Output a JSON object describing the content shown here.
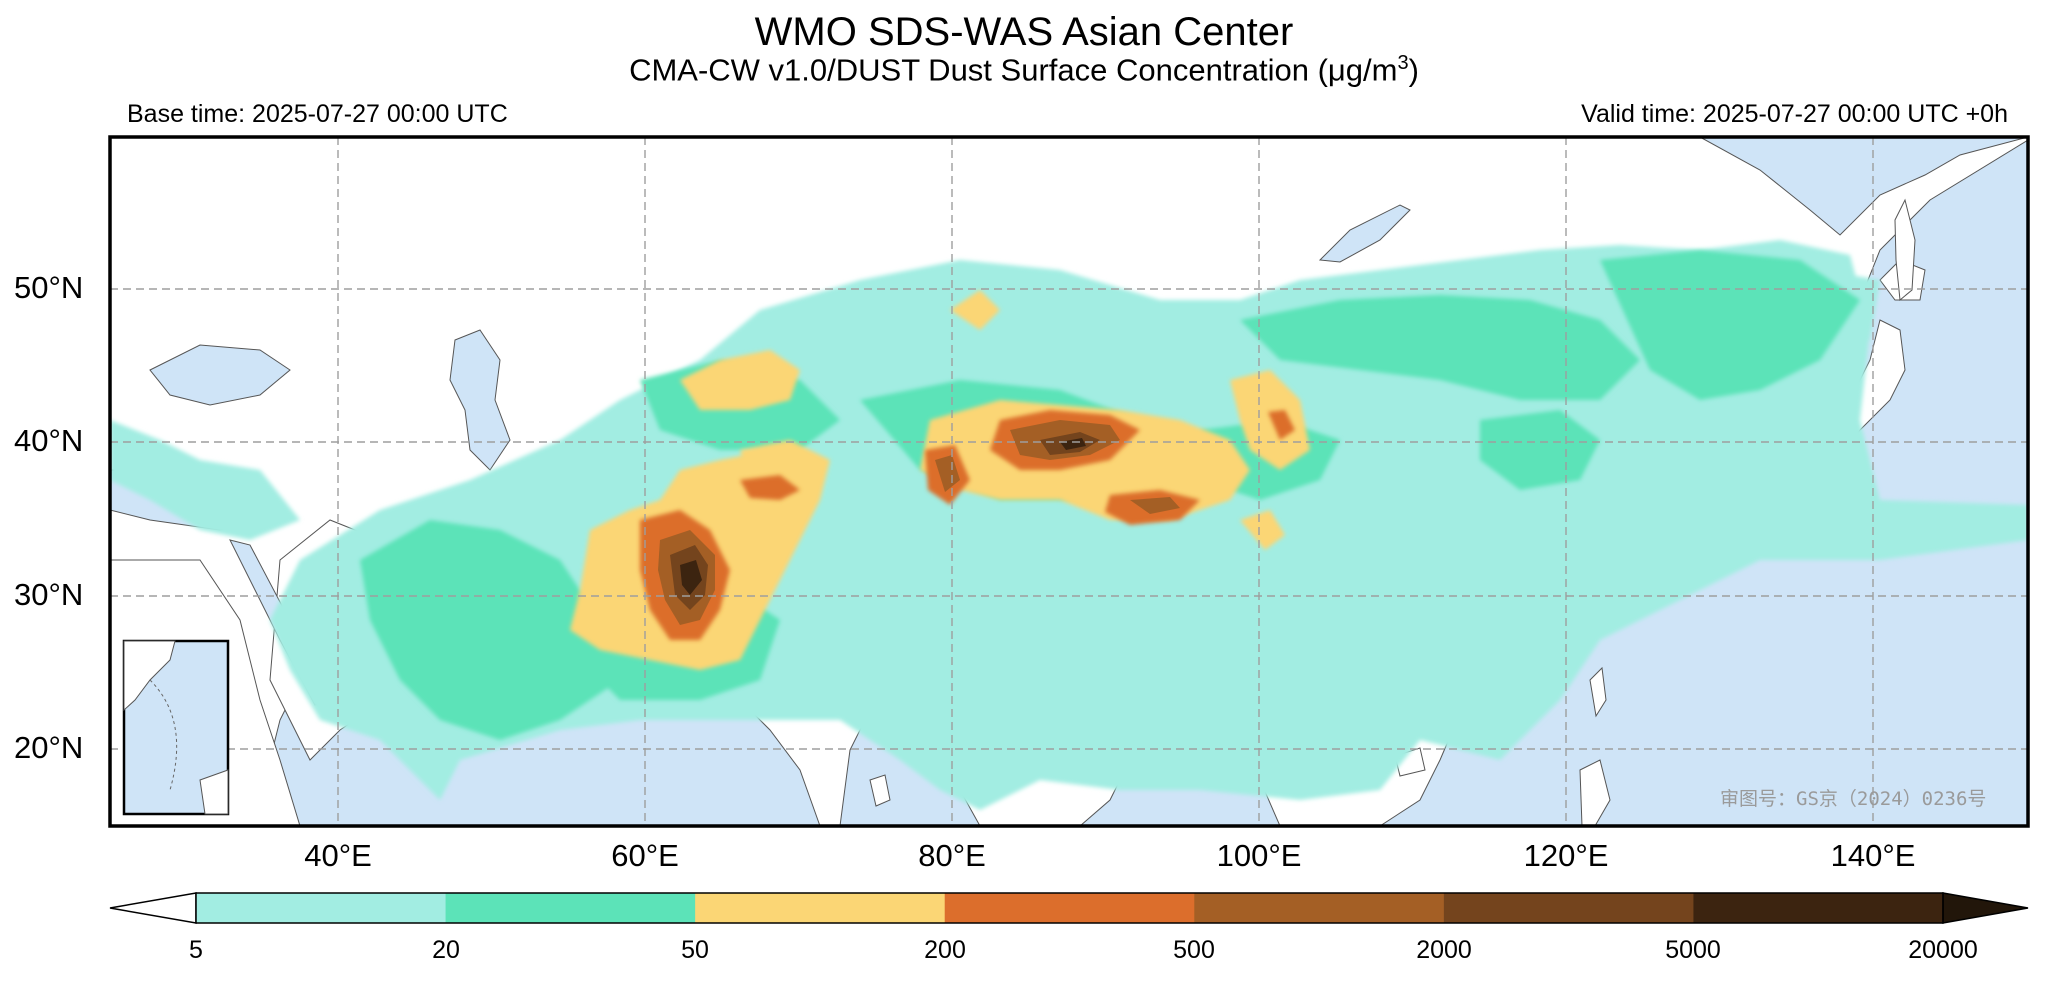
{
  "header": {
    "title": "WMO SDS-WAS Asian Center",
    "subtitle_text": "CMA-CW v1.0/DUST Dust Surface Concentration (μg/m",
    "subtitle_sup": "3",
    "subtitle_close": ")",
    "base_time": "Base time: 2025-07-27 00:00 UTC",
    "valid_time": "Valid time: 2025-07-27 00:00 UTC +0h"
  },
  "map": {
    "projection": "PlateCarree",
    "lon_range": [
      25,
      150
    ],
    "lat_range": [
      15,
      60
    ],
    "gridlines": true,
    "x_ticks": [
      "40°E",
      "60°E",
      "80°E",
      "100°E",
      "120°E",
      "140°E"
    ],
    "y_ticks": [
      "50°N",
      "40°N",
      "30°N",
      "20°N"
    ],
    "ocean_color": "#cfe4f7",
    "land_color": "#ffffff",
    "inset": "South China Sea",
    "watermark": "审图号：GS京（2024）0236号"
  },
  "colorbar": {
    "levels": [
      "5",
      "20",
      "50",
      "200",
      "500",
      "2000",
      "5000",
      "20000"
    ],
    "colors": [
      "#a2ede2",
      "#5ce3b8",
      "#fbd675",
      "#dc6e2c",
      "#a45f25",
      "#74441d",
      "#3c2410"
    ],
    "extend": "both",
    "under_color": "#ffffff",
    "over_color": "#22160a"
  }
}
